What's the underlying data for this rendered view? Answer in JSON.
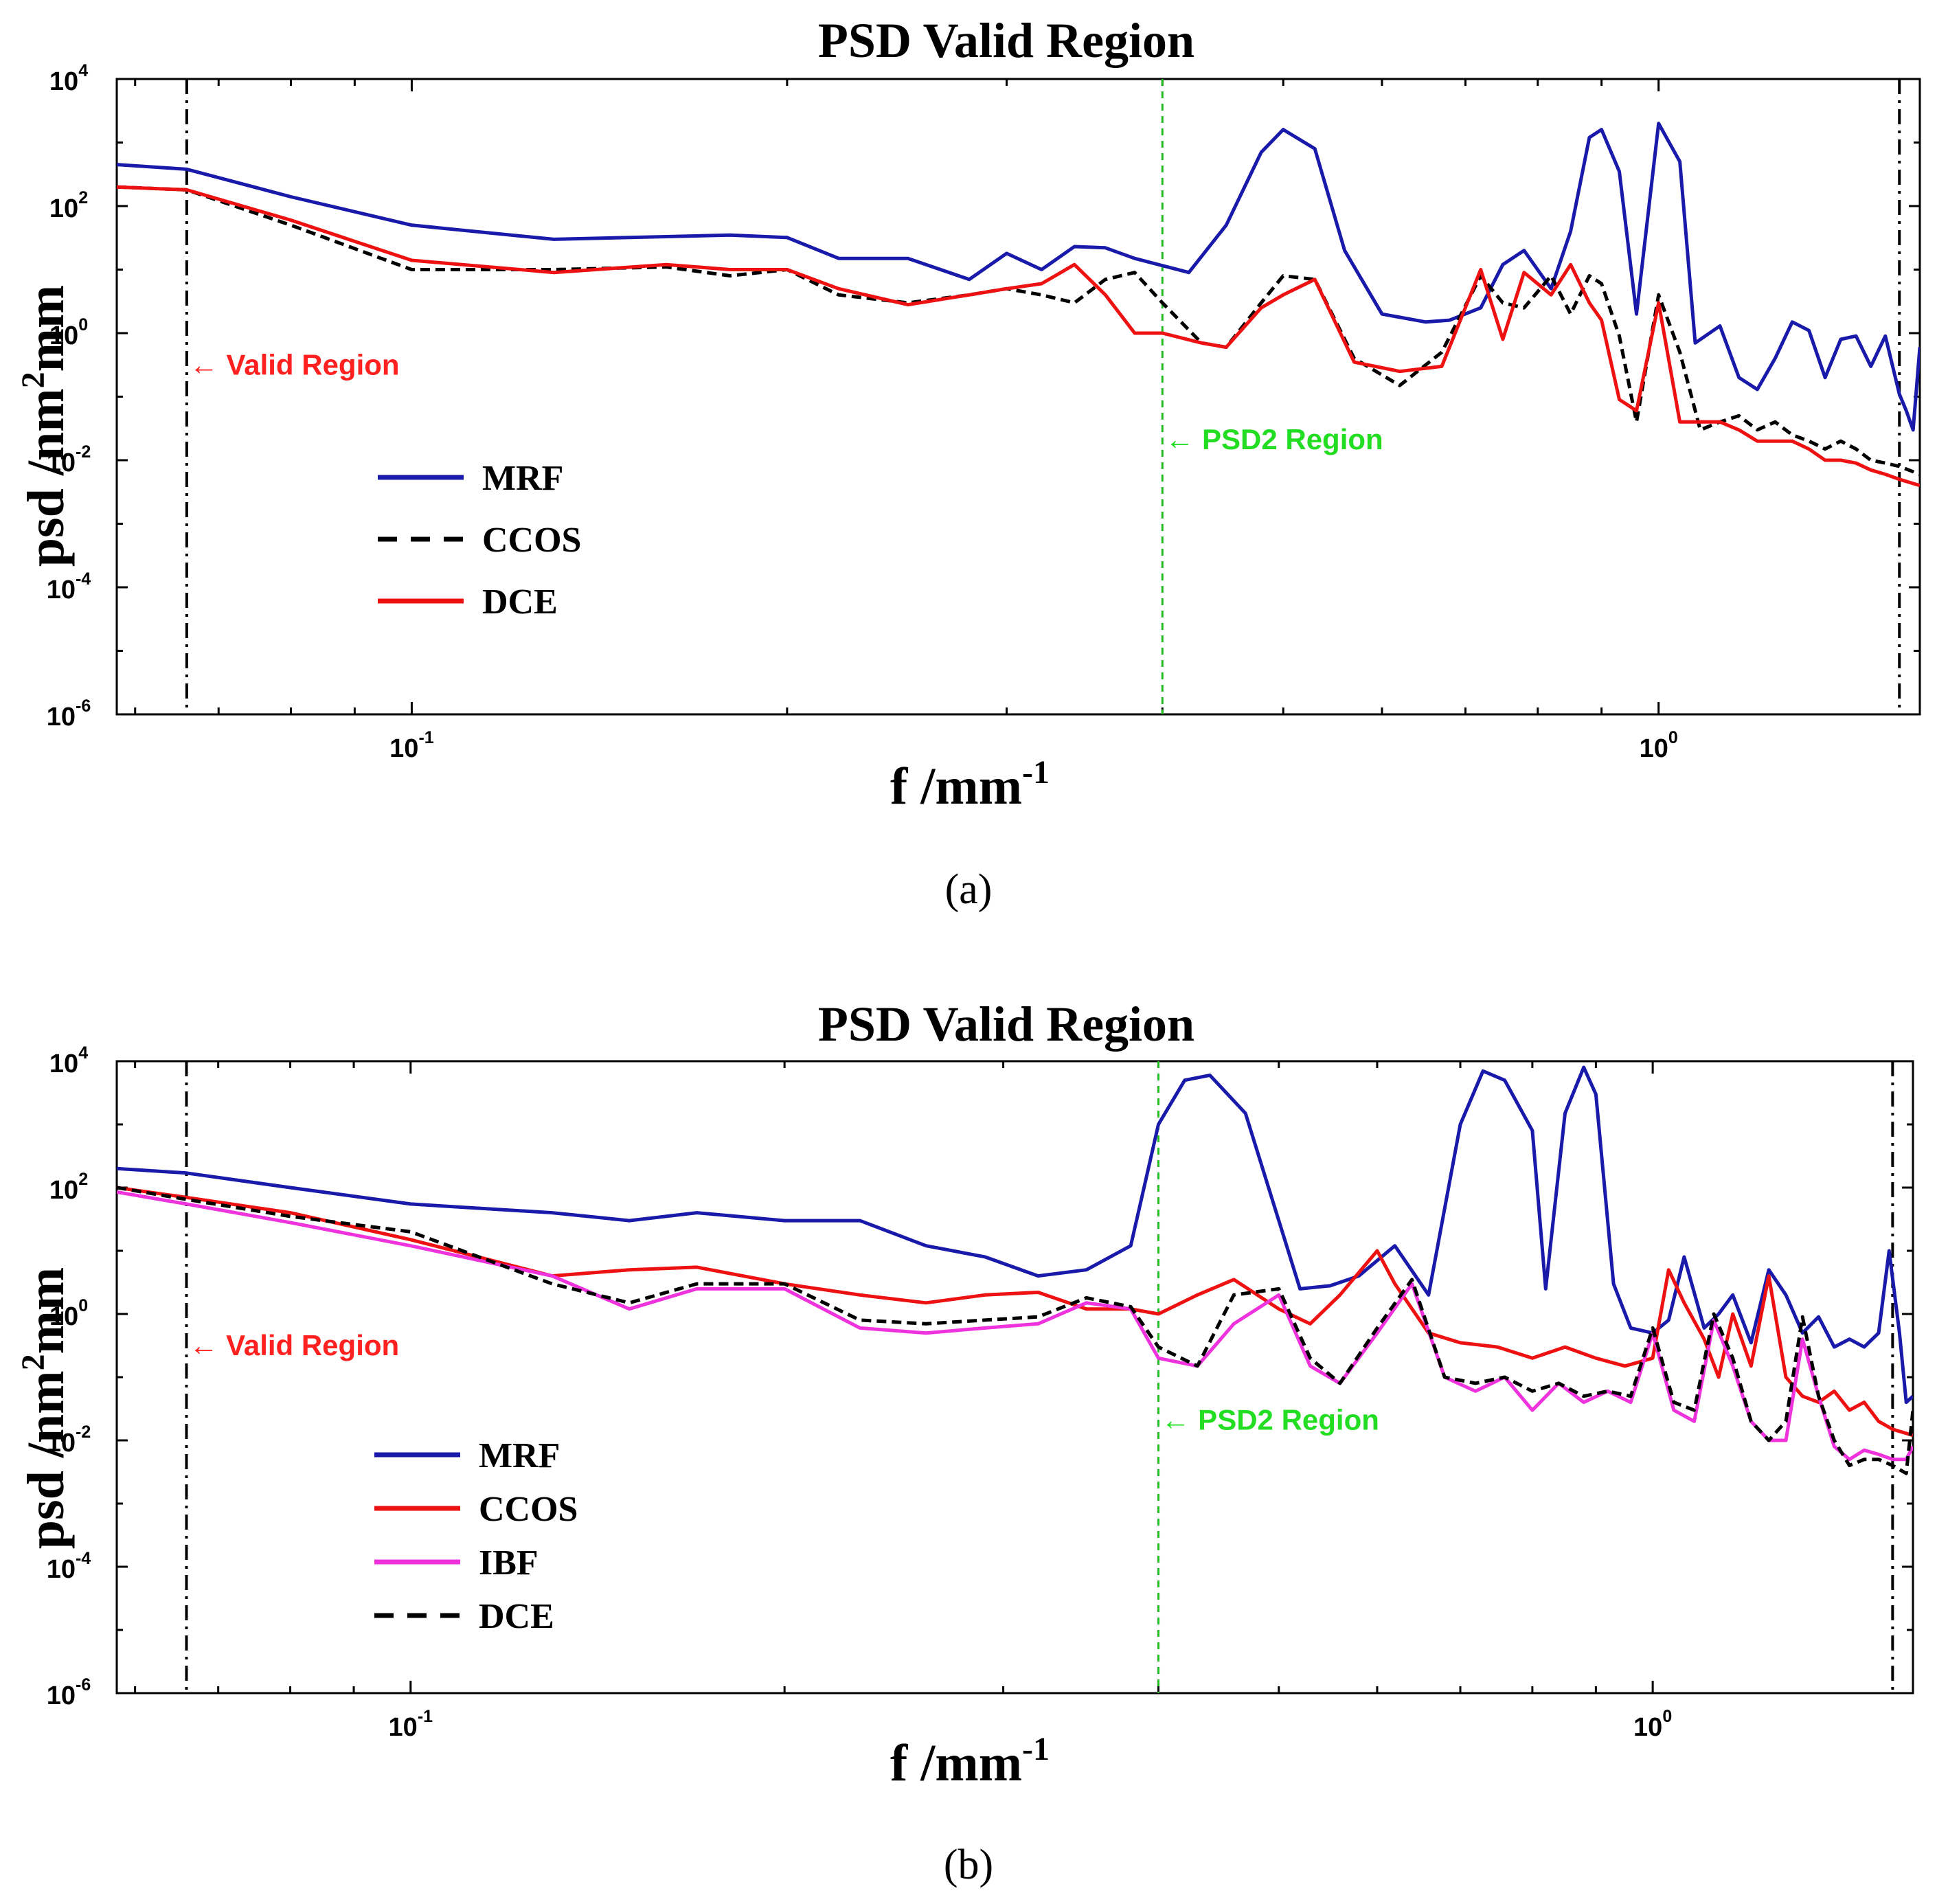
{
  "chart_data": [
    {
      "type": "line",
      "panel_caption": "(a)",
      "title": "PSD Valid Region",
      "xlabel": "f /mm",
      "xlabel_exp": "-1",
      "ylabel": "psd /nm",
      "ylabel_exp": "2",
      "ylabel_tail": "mm",
      "xscale": "log",
      "yscale": "log",
      "xlim": [
        0.058,
        1.62
      ],
      "ylim": [
        1e-06,
        10000
      ],
      "xticks": [
        {
          "value": 0.1,
          "base": "10",
          "exp": "-1"
        },
        {
          "value": 1,
          "base": "10",
          "exp": "0"
        }
      ],
      "yticks": [
        {
          "value": 10000,
          "base": "10",
          "exp": "4"
        },
        {
          "value": 100,
          "base": "10",
          "exp": "2"
        },
        {
          "value": 1,
          "base": "10",
          "exp": "0"
        },
        {
          "value": 0.01,
          "base": "10",
          "exp": "-2"
        },
        {
          "value": 0.0001,
          "base": "10",
          "exp": "-4"
        },
        {
          "value": 1e-06,
          "base": "10",
          "exp": "-6"
        }
      ],
      "vlines": [
        {
          "x": 0.066,
          "color": "#000000",
          "style": "dashdot"
        },
        {
          "x": 0.4,
          "color": "#22bb22",
          "style": "dashed"
        },
        {
          "x": 1.56,
          "color": "#000000",
          "style": "dashdot"
        }
      ],
      "annotations": [
        {
          "text": "← Valid Region",
          "x": 0.066,
          "y": 0.3,
          "color": "#ff2020"
        },
        {
          "text": "← PSD2 Region",
          "x": 0.4,
          "y": 0.02,
          "color": "#22dd22"
        }
      ],
      "legend": [
        {
          "label": "MRF",
          "color": "#1a1aaa",
          "style": "solid"
        },
        {
          "label": "CCOS",
          "color": "#000000",
          "style": "dashed"
        },
        {
          "label": "DCE",
          "color": "#ee1111",
          "style": "solid"
        }
      ],
      "series": [
        {
          "name": "MRF",
          "color": "#1a1aaa",
          "style": "solid",
          "width": 5,
          "x": [
            0.058,
            0.066,
            0.08,
            0.1,
            0.13,
            0.16,
            0.18,
            0.2,
            0.22,
            0.25,
            0.28,
            0.3,
            0.32,
            0.34,
            0.36,
            0.38,
            0.42,
            0.45,
            0.48,
            0.5,
            0.53,
            0.56,
            0.6,
            0.65,
            0.68,
            0.72,
            0.75,
            0.78,
            0.82,
            0.85,
            0.88,
            0.9,
            0.93,
            0.96,
            1.0,
            1.04,
            1.07,
            1.12,
            1.16,
            1.2,
            1.24,
            1.28,
            1.32,
            1.36,
            1.4,
            1.44,
            1.48,
            1.52,
            1.56,
            1.58,
            1.6,
            1.62
          ],
          "y": [
            450,
            380,
            140,
            50,
            30,
            33,
            35,
            32,
            15,
            15,
            7,
            18,
            10,
            23,
            22,
            15,
            9,
            50,
            700,
            1600,
            800,
            20,
            2,
            1.5,
            1.6,
            2.5,
            12,
            20,
            5,
            40,
            1200,
            1600,
            350,
            2,
            2000,
            500,
            0.7,
            1.3,
            0.2,
            0.13,
            0.4,
            1.5,
            1.1,
            0.2,
            0.8,
            0.9,
            0.3,
            0.9,
            0.11,
            0.06,
            0.03,
            0.6
          ]
        },
        {
          "name": "CCOS",
          "color": "#000000",
          "style": "dashed",
          "width": 5,
          "x": [
            0.058,
            0.066,
            0.08,
            0.1,
            0.13,
            0.16,
            0.18,
            0.2,
            0.22,
            0.25,
            0.28,
            0.3,
            0.32,
            0.34,
            0.36,
            0.38,
            0.4,
            0.43,
            0.45,
            0.48,
            0.5,
            0.53,
            0.57,
            0.62,
            0.67,
            0.72,
            0.75,
            0.78,
            0.82,
            0.85,
            0.88,
            0.9,
            0.93,
            0.96,
            1.0,
            1.04,
            1.08,
            1.12,
            1.16,
            1.2,
            1.24,
            1.28,
            1.32,
            1.36,
            1.4,
            1.44,
            1.48,
            1.52,
            1.56,
            1.62
          ],
          "y": [
            200,
            180,
            50,
            10,
            10,
            11,
            8,
            10,
            4,
            3,
            4,
            5,
            4,
            3,
            7,
            9,
            3,
            0.7,
            0.6,
            3,
            8,
            7,
            0.4,
            0.15,
            0.5,
            8,
            3,
            2.5,
            8,
            2,
            8,
            6,
            0.9,
            0.04,
            4,
            0.5,
            0.03,
            0.04,
            0.05,
            0.03,
            0.04,
            0.025,
            0.02,
            0.015,
            0.02,
            0.015,
            0.01,
            0.009,
            0.008,
            0.006
          ]
        },
        {
          "name": "DCE",
          "color": "#ee1111",
          "style": "solid",
          "width": 5,
          "x": [
            0.058,
            0.066,
            0.08,
            0.1,
            0.13,
            0.16,
            0.18,
            0.2,
            0.22,
            0.25,
            0.28,
            0.3,
            0.32,
            0.34,
            0.36,
            0.38,
            0.4,
            0.43,
            0.45,
            0.48,
            0.5,
            0.53,
            0.57,
            0.62,
            0.67,
            0.72,
            0.75,
            0.78,
            0.82,
            0.85,
            0.88,
            0.9,
            0.93,
            0.96,
            1.0,
            1.04,
            1.08,
            1.12,
            1.16,
            1.2,
            1.24,
            1.28,
            1.32,
            1.36,
            1.4,
            1.44,
            1.48,
            1.52,
            1.56,
            1.62
          ],
          "y": [
            200,
            180,
            60,
            14,
            9,
            12,
            10,
            10,
            5,
            2.8,
            4,
            5,
            6,
            12,
            4,
            1,
            1,
            0.7,
            0.6,
            2.5,
            4,
            7,
            0.35,
            0.25,
            0.3,
            10,
            0.8,
            9,
            4,
            12,
            3,
            1.6,
            0.09,
            0.06,
            3,
            0.04,
            0.04,
            0.04,
            0.03,
            0.02,
            0.02,
            0.02,
            0.015,
            0.01,
            0.01,
            0.009,
            0.007,
            0.006,
            0.005,
            0.004
          ]
        }
      ]
    },
    {
      "type": "line",
      "panel_caption": "(b)",
      "title": "PSD Valid Region",
      "xlabel": "f /mm",
      "xlabel_exp": "-1",
      "ylabel": "psd /nm",
      "ylabel_exp": "2",
      "ylabel_tail": "mm",
      "xscale": "log",
      "yscale": "log",
      "xlim": [
        0.058,
        1.62
      ],
      "ylim": [
        1e-06,
        10000
      ],
      "xticks": [
        {
          "value": 0.1,
          "base": "10",
          "exp": "-1"
        },
        {
          "value": 1,
          "base": "10",
          "exp": "0"
        }
      ],
      "yticks": [
        {
          "value": 10000,
          "base": "10",
          "exp": "4"
        },
        {
          "value": 100,
          "base": "10",
          "exp": "2"
        },
        {
          "value": 1,
          "base": "10",
          "exp": "0"
        },
        {
          "value": 0.01,
          "base": "10",
          "exp": "-2"
        },
        {
          "value": 0.0001,
          "base": "10",
          "exp": "-4"
        },
        {
          "value": 1e-06,
          "base": "10",
          "exp": "-6"
        }
      ],
      "vlines": [
        {
          "x": 0.066,
          "color": "#000000",
          "style": "dashdot"
        },
        {
          "x": 0.4,
          "color": "#22bb22",
          "style": "dashed"
        },
        {
          "x": 1.56,
          "color": "#000000",
          "style": "dashdot"
        }
      ],
      "annotations": [
        {
          "text": "← Valid Region",
          "x": 0.066,
          "y": 0.3,
          "color": "#ff2020"
        },
        {
          "text": "← PSD2 Region",
          "x": 0.4,
          "y": 0.02,
          "color": "#22dd22"
        }
      ],
      "legend": [
        {
          "label": "MRF",
          "color": "#1a1aaa",
          "style": "solid"
        },
        {
          "label": "CCOS",
          "color": "#ee1111",
          "style": "solid"
        },
        {
          "label": "IBF",
          "color": "#ee33dd",
          "style": "solid"
        },
        {
          "label": "DCE",
          "color": "#000000",
          "style": "dashed"
        }
      ],
      "series": [
        {
          "name": "MRF",
          "color": "#1a1aaa",
          "style": "solid",
          "width": 5,
          "x": [
            0.058,
            0.066,
            0.08,
            0.1,
            0.13,
            0.15,
            0.17,
            0.2,
            0.23,
            0.26,
            0.29,
            0.32,
            0.35,
            0.38,
            0.4,
            0.42,
            0.44,
            0.47,
            0.5,
            0.52,
            0.55,
            0.58,
            0.62,
            0.66,
            0.7,
            0.73,
            0.76,
            0.8,
            0.82,
            0.85,
            0.88,
            0.9,
            0.93,
            0.96,
            1.0,
            1.03,
            1.06,
            1.1,
            1.13,
            1.16,
            1.2,
            1.24,
            1.28,
            1.32,
            1.36,
            1.4,
            1.44,
            1.48,
            1.52,
            1.55,
            1.58,
            1.6,
            1.62
          ],
          "y": [
            200,
            170,
            100,
            55,
            40,
            30,
            40,
            30,
            30,
            12,
            8,
            4,
            5,
            12,
            1000,
            5000,
            6000,
            1500,
            30,
            2.5,
            2.8,
            4,
            12,
            2,
            1000,
            7000,
            5000,
            800,
            2.5,
            1500,
            8000,
            3000,
            3,
            0.6,
            0.5,
            0.8,
            8,
            0.6,
            1,
            2,
            0.35,
            5,
            2,
            0.5,
            0.9,
            0.3,
            0.4,
            0.3,
            0.5,
            10,
            0.5,
            0.04,
            0.05
          ]
        },
        {
          "name": "CCOS",
          "color": "#ee1111",
          "style": "solid",
          "width": 5,
          "x": [
            0.058,
            0.066,
            0.08,
            0.1,
            0.13,
            0.15,
            0.17,
            0.2,
            0.23,
            0.26,
            0.29,
            0.32,
            0.35,
            0.38,
            0.4,
            0.43,
            0.46,
            0.5,
            0.53,
            0.56,
            0.6,
            0.62,
            0.66,
            0.7,
            0.75,
            0.8,
            0.85,
            0.9,
            0.95,
            1.0,
            1.03,
            1.06,
            1.1,
            1.13,
            1.16,
            1.2,
            1.24,
            1.28,
            1.32,
            1.36,
            1.4,
            1.44,
            1.48,
            1.52,
            1.56,
            1.62
          ],
          "y": [
            100,
            70,
            40,
            15,
            4,
            5,
            5.5,
            3,
            2,
            1.5,
            2,
            2.2,
            1.2,
            1.2,
            1,
            2,
            3.5,
            1.2,
            0.7,
            2,
            10,
            3,
            0.5,
            0.35,
            0.3,
            0.2,
            0.3,
            0.2,
            0.15,
            0.2,
            5,
            1.5,
            0.4,
            0.1,
            1,
            0.15,
            4,
            0.1,
            0.05,
            0.04,
            0.06,
            0.03,
            0.04,
            0.02,
            0.015,
            0.012
          ]
        },
        {
          "name": "IBF",
          "color": "#ee33dd",
          "style": "solid",
          "width": 5,
          "x": [
            0.058,
            0.066,
            0.08,
            0.1,
            0.13,
            0.15,
            0.17,
            0.2,
            0.23,
            0.26,
            0.29,
            0.32,
            0.35,
            0.38,
            0.4,
            0.43,
            0.46,
            0.5,
            0.53,
            0.56,
            0.6,
            0.64,
            0.68,
            0.72,
            0.76,
            0.8,
            0.84,
            0.88,
            0.92,
            0.96,
            1.0,
            1.04,
            1.08,
            1.12,
            1.16,
            1.2,
            1.24,
            1.28,
            1.32,
            1.36,
            1.4,
            1.44,
            1.48,
            1.52,
            1.56,
            1.6,
            1.62
          ],
          "y": [
            85,
            55,
            28,
            12,
            4,
            1.2,
            2.5,
            2.5,
            0.6,
            0.5,
            0.6,
            0.7,
            1.5,
            1.2,
            0.2,
            0.15,
            0.7,
            2,
            0.15,
            0.08,
            0.5,
            3,
            0.1,
            0.06,
            0.1,
            0.03,
            0.08,
            0.04,
            0.06,
            0.04,
            0.5,
            0.03,
            0.02,
            0.8,
            0.15,
            0.02,
            0.01,
            0.01,
            0.4,
            0.05,
            0.008,
            0.005,
            0.007,
            0.006,
            0.005,
            0.005,
            0.008
          ]
        },
        {
          "name": "DCE",
          "color": "#000000",
          "style": "dashed",
          "width": 5,
          "x": [
            0.058,
            0.066,
            0.08,
            0.1,
            0.13,
            0.15,
            0.17,
            0.2,
            0.23,
            0.26,
            0.29,
            0.32,
            0.35,
            0.38,
            0.4,
            0.43,
            0.46,
            0.5,
            0.53,
            0.56,
            0.6,
            0.64,
            0.68,
            0.72,
            0.76,
            0.8,
            0.84,
            0.88,
            0.92,
            0.96,
            1.0,
            1.04,
            1.08,
            1.12,
            1.16,
            1.2,
            1.24,
            1.28,
            1.32,
            1.36,
            1.4,
            1.44,
            1.48,
            1.52,
            1.56,
            1.6,
            1.62
          ],
          "y": [
            100,
            65,
            35,
            20,
            3,
            1.5,
            3,
            3,
            0.8,
            0.7,
            0.8,
            0.9,
            1.8,
            1.3,
            0.3,
            0.15,
            2,
            2.5,
            0.2,
            0.08,
            0.6,
            3.5,
            0.1,
            0.08,
            0.1,
            0.06,
            0.08,
            0.05,
            0.06,
            0.05,
            0.6,
            0.04,
            0.03,
            1,
            0.2,
            0.02,
            0.01,
            0.02,
            0.9,
            0.05,
            0.01,
            0.004,
            0.005,
            0.005,
            0.004,
            0.003,
            0.03
          ]
        }
      ]
    }
  ]
}
